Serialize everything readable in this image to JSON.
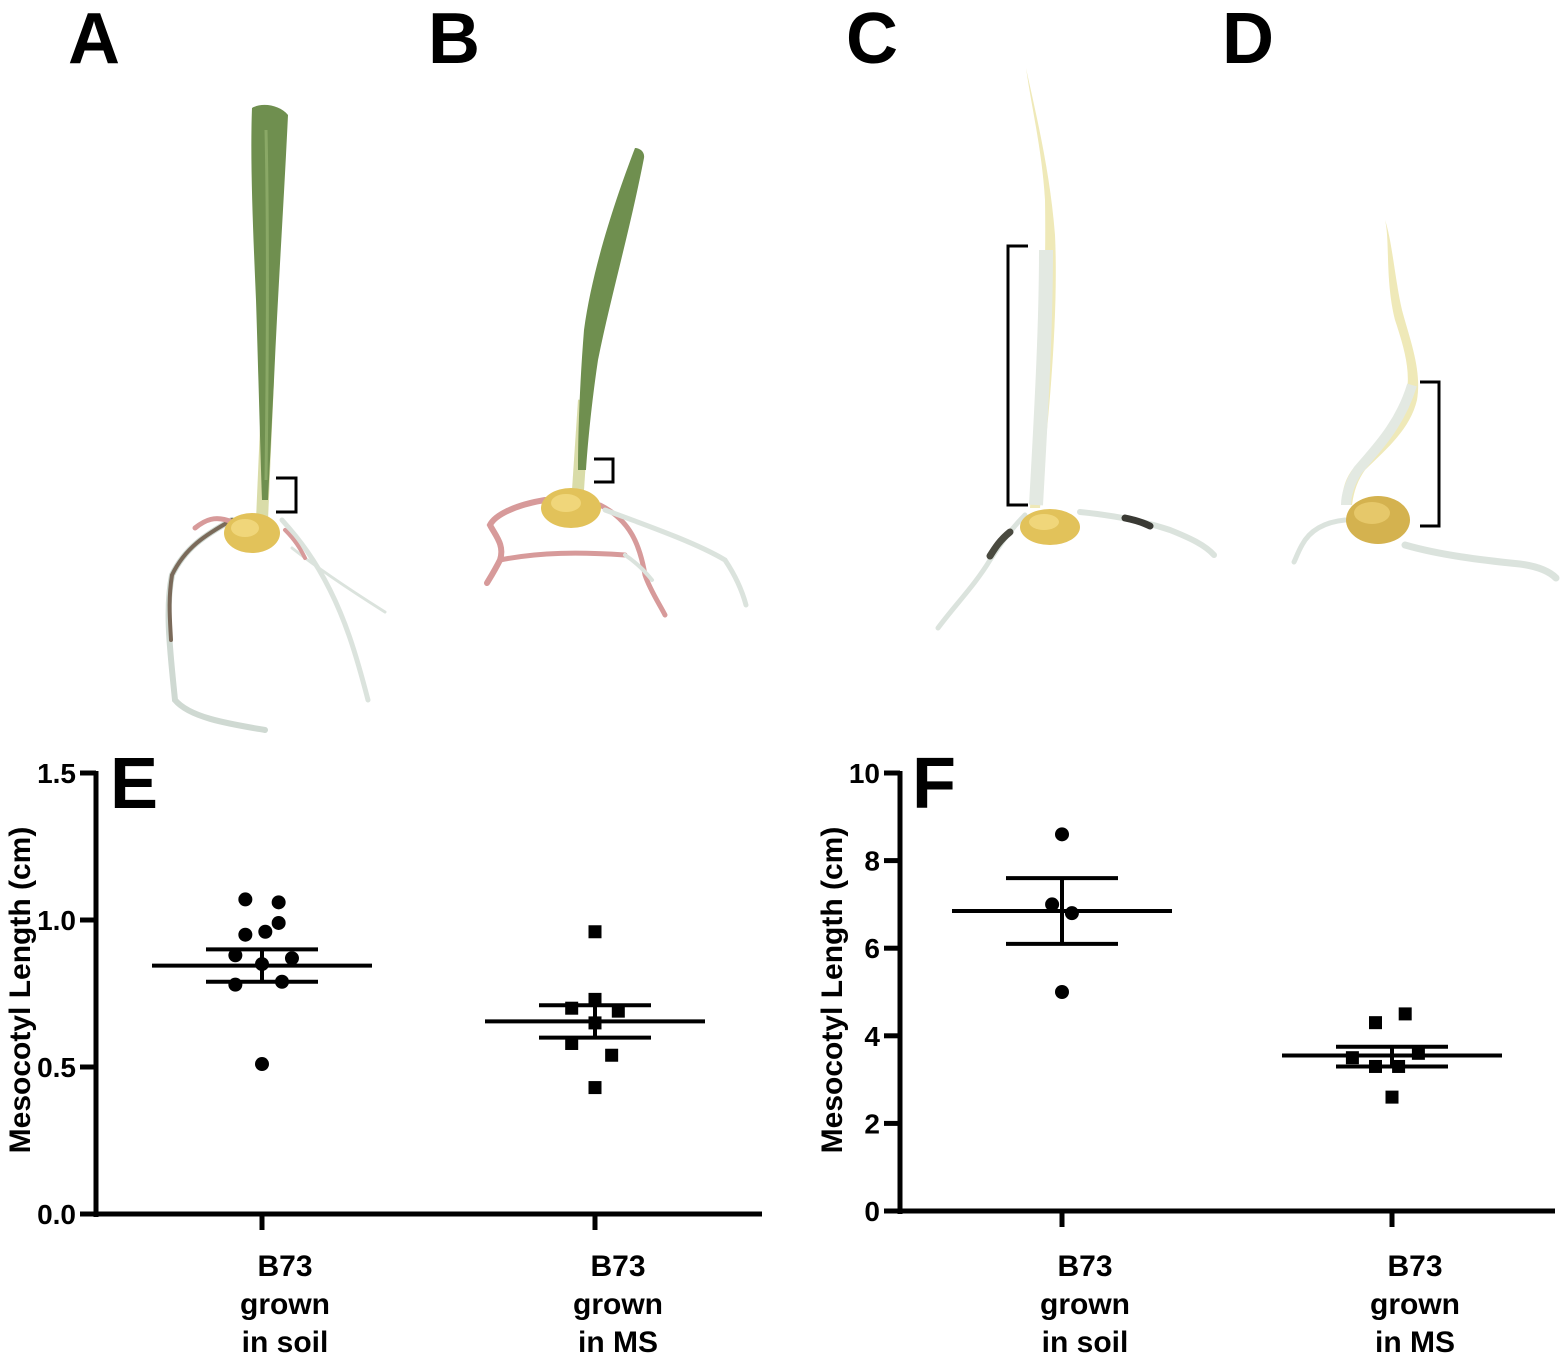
{
  "panels": {
    "A": "A",
    "B": "B",
    "C": "C",
    "D": "D",
    "E": "E",
    "F": "F"
  },
  "colors": {
    "leaf_green": "#6f8f4f",
    "etiolated": "#efe9b8",
    "stem_white": "#e6ece4",
    "seed": "#e2c25a",
    "root_pink": "#d79a9a",
    "root_white": "#dde5df",
    "ink": "#000000"
  },
  "chart_data": [
    {
      "type": "scatter",
      "panel": "E",
      "ylabel": "Mesocotyl Length (cm)",
      "ylim": [
        0,
        1.5
      ],
      "yticks": [
        "0.0",
        "0.5",
        "1.0",
        "1.5"
      ],
      "categories": [
        [
          "B73",
          "grown",
          "in soil"
        ],
        [
          "B73",
          "grown",
          "in MS"
        ]
      ],
      "series": [
        {
          "marker": "circle",
          "points": [
            {
              "dx": -0.05,
              "y": 1.07
            },
            {
              "dx": 0.05,
              "y": 1.06
            },
            {
              "dx": 0.05,
              "y": 0.99
            },
            {
              "dx": -0.05,
              "y": 0.95
            },
            {
              "dx": 0.01,
              "y": 0.96
            },
            {
              "dx": -0.08,
              "y": 0.88
            },
            {
              "dx": 0.09,
              "y": 0.87
            },
            {
              "dx": 0.0,
              "y": 0.85
            },
            {
              "dx": -0.08,
              "y": 0.78
            },
            {
              "dx": 0.06,
              "y": 0.79
            },
            {
              "dx": 0.0,
              "y": 0.51
            }
          ],
          "mean": 0.845,
          "sem_low": 0.79,
          "sem_high": 0.9
        },
        {
          "marker": "square",
          "points": [
            {
              "dx": 0.0,
              "y": 0.96
            },
            {
              "dx": 0.0,
              "y": 0.73
            },
            {
              "dx": -0.07,
              "y": 0.7
            },
            {
              "dx": 0.07,
              "y": 0.69
            },
            {
              "dx": 0.0,
              "y": 0.65
            },
            {
              "dx": -0.07,
              "y": 0.58
            },
            {
              "dx": 0.05,
              "y": 0.54
            },
            {
              "dx": 0.0,
              "y": 0.43
            }
          ],
          "mean": 0.655,
          "sem_low": 0.6,
          "sem_high": 0.71
        }
      ]
    },
    {
      "type": "scatter",
      "panel": "F",
      "ylabel": "Mesocotyl Length (cm)",
      "ylim": [
        0,
        10
      ],
      "yticks": [
        "0",
        "2",
        "4",
        "6",
        "8",
        "10"
      ],
      "categories": [
        [
          "B73",
          "grown",
          "in soil"
        ],
        [
          "B73",
          "grown",
          "in MS"
        ]
      ],
      "series": [
        {
          "marker": "circle",
          "points": [
            {
              "dx": 0.0,
              "y": 8.6
            },
            {
              "dx": -0.03,
              "y": 7.0
            },
            {
              "dx": 0.03,
              "y": 6.8
            },
            {
              "dx": 0.0,
              "y": 5.0
            }
          ],
          "mean": 6.85,
          "sem_low": 6.1,
          "sem_high": 7.6
        },
        {
          "marker": "square",
          "points": [
            {
              "dx": -0.05,
              "y": 4.3
            },
            {
              "dx": 0.04,
              "y": 4.5
            },
            {
              "dx": 0.08,
              "y": 3.6
            },
            {
              "dx": -0.12,
              "y": 3.5
            },
            {
              "dx": -0.05,
              "y": 3.3
            },
            {
              "dx": 0.02,
              "y": 3.3
            },
            {
              "dx": 0.0,
              "y": 2.6
            }
          ],
          "mean": 3.55,
          "sem_low": 3.3,
          "sem_high": 3.75
        }
      ]
    }
  ]
}
